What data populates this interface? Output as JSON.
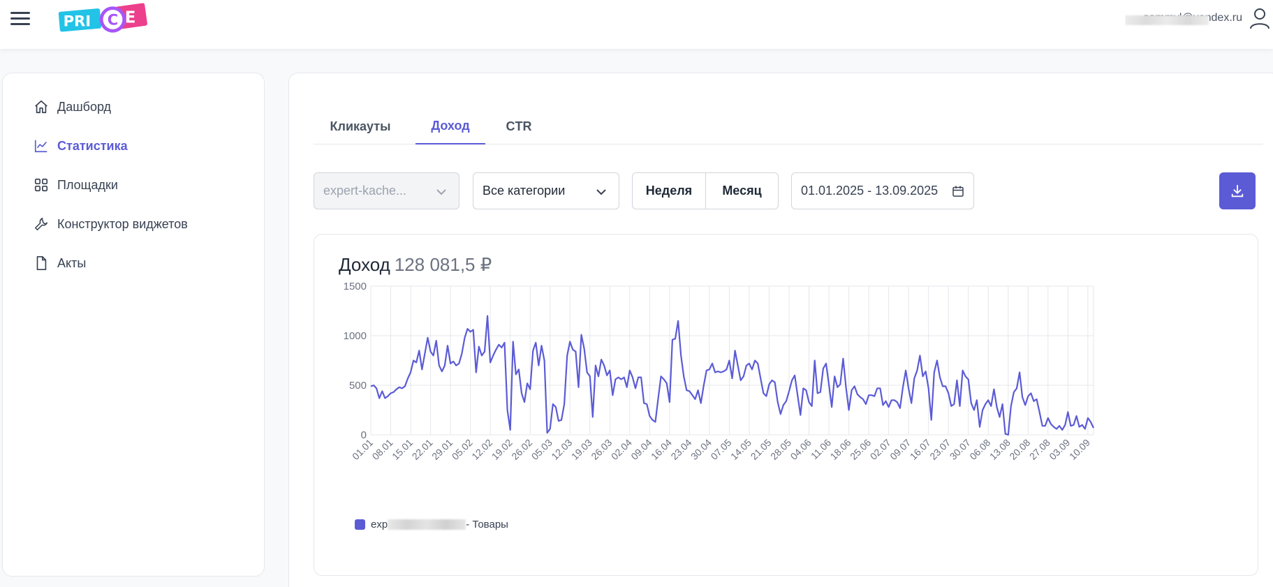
{
  "header": {
    "logo_text": "PRICE",
    "user_email": "sommyl@yandex.ru"
  },
  "sidebar": {
    "items": [
      {
        "label": "Дашборд",
        "icon": "home-icon",
        "active": false
      },
      {
        "label": "Статистика",
        "icon": "chart-line-icon",
        "active": true
      },
      {
        "label": "Площадки",
        "icon": "grid-icon",
        "active": false
      },
      {
        "label": "Конструктор виджетов",
        "icon": "wrench-icon",
        "active": false
      },
      {
        "label": "Акты",
        "icon": "document-icon",
        "active": false
      }
    ]
  },
  "main": {
    "tabs": [
      {
        "label": "Кликауты",
        "active": false
      },
      {
        "label": "Доход",
        "active": true
      },
      {
        "label": "CTR",
        "active": false
      }
    ],
    "filters": {
      "site_value": "expert-kache...",
      "category_value": "Все категории",
      "period_week": "Неделя",
      "period_month": "Месяц",
      "date_range": "01.01.2025 - 13.09.2025"
    },
    "chart_card": {
      "title": "Доход",
      "total": "128 081,5 ₽"
    }
  },
  "colors": {
    "accent": "#5b5bd6",
    "logo_cyan": "#22c3e6",
    "logo_pink": "#ec3f8c"
  },
  "chart_data": {
    "type": "line",
    "title": "Доход",
    "ylim": [
      0,
      1500
    ],
    "y_ticks": [
      0,
      500,
      1000,
      1500
    ],
    "x_tick_labels": [
      "01.01",
      "08.01",
      "15.01",
      "22.01",
      "29.01",
      "05.02",
      "12.02",
      "19.02",
      "26.02",
      "05.03",
      "12.03",
      "19.03",
      "26.03",
      "02.04",
      "09.04",
      "16.04",
      "23.04",
      "30.04",
      "07.05",
      "14.05",
      "21.05",
      "28.05",
      "04.06",
      "11.06",
      "18.06",
      "25.06",
      "02.07",
      "09.07",
      "16.07",
      "23.07",
      "30.07",
      "06.08",
      "13.08",
      "20.08",
      "27.08",
      "03.09",
      "10.09"
    ],
    "grid": true,
    "legend_position": "bottom-left",
    "series": [
      {
        "name": "exp - Товары",
        "legend_prefix": "exp",
        "legend_suffix": "- Товары",
        "values": [
          490,
          500,
          470,
          370,
          440,
          370,
          390,
          420,
          430,
          460,
          480,
          470,
          490,
          570,
          630,
          750,
          730,
          850,
          660,
          820,
          980,
          840,
          800,
          950,
          700,
          640,
          700,
          900,
          720,
          740,
          700,
          720,
          820,
          980,
          1070,
          1040,
          1060,
          630,
          890,
          800,
          840,
          1200,
          730,
          800,
          860,
          910,
          880,
          930,
          250,
          50,
          940,
          610,
          660,
          420,
          330,
          520,
          460,
          850,
          930,
          700,
          900,
          750,
          20,
          60,
          310,
          280,
          140,
          150,
          310,
          800,
          940,
          860,
          840,
          480,
          1010,
          870,
          630,
          590,
          180,
          700,
          590,
          760,
          700,
          600,
          650,
          400,
          560,
          580,
          560,
          580,
          480,
          650,
          580,
          470,
          580,
          580,
          320,
          310,
          190,
          150,
          130,
          370,
          590,
          560,
          520,
          330,
          960,
          970,
          1150,
          800,
          590,
          450,
          440,
          400,
          360,
          450,
          320,
          500,
          650,
          660,
          720,
          630,
          640,
          630,
          640,
          660,
          750,
          570,
          850,
          700,
          550,
          590,
          700,
          720,
          660,
          750,
          720,
          570,
          420,
          390,
          510,
          550,
          530,
          330,
          210,
          300,
          340,
          440,
          550,
          600,
          400,
          200,
          470,
          450,
          330,
          290,
          750,
          420,
          430,
          670,
          720,
          510,
          280,
          590,
          480,
          510,
          770,
          480,
          250,
          450,
          490,
          410,
          380,
          360,
          310,
          400,
          400,
          390,
          470,
          470,
          300,
          340,
          280,
          350,
          350,
          330,
          270,
          480,
          650,
          470,
          320,
          570,
          650,
          800,
          590,
          640,
          470,
          150,
          630,
          750,
          580,
          490,
          490,
          420,
          290,
          310,
          550,
          290,
          650,
          590,
          560,
          320,
          250,
          350,
          80,
          250,
          310,
          350,
          290,
          460,
          280,
          180,
          310,
          10,
          0,
          290,
          430,
          470,
          630,
          380,
          300,
          390,
          420,
          340,
          360,
          230,
          90,
          90,
          170,
          110,
          80,
          60,
          90,
          50,
          100,
          230,
          90,
          100,
          190,
          80,
          100,
          60,
          170,
          130,
          70
        ]
      }
    ]
  }
}
